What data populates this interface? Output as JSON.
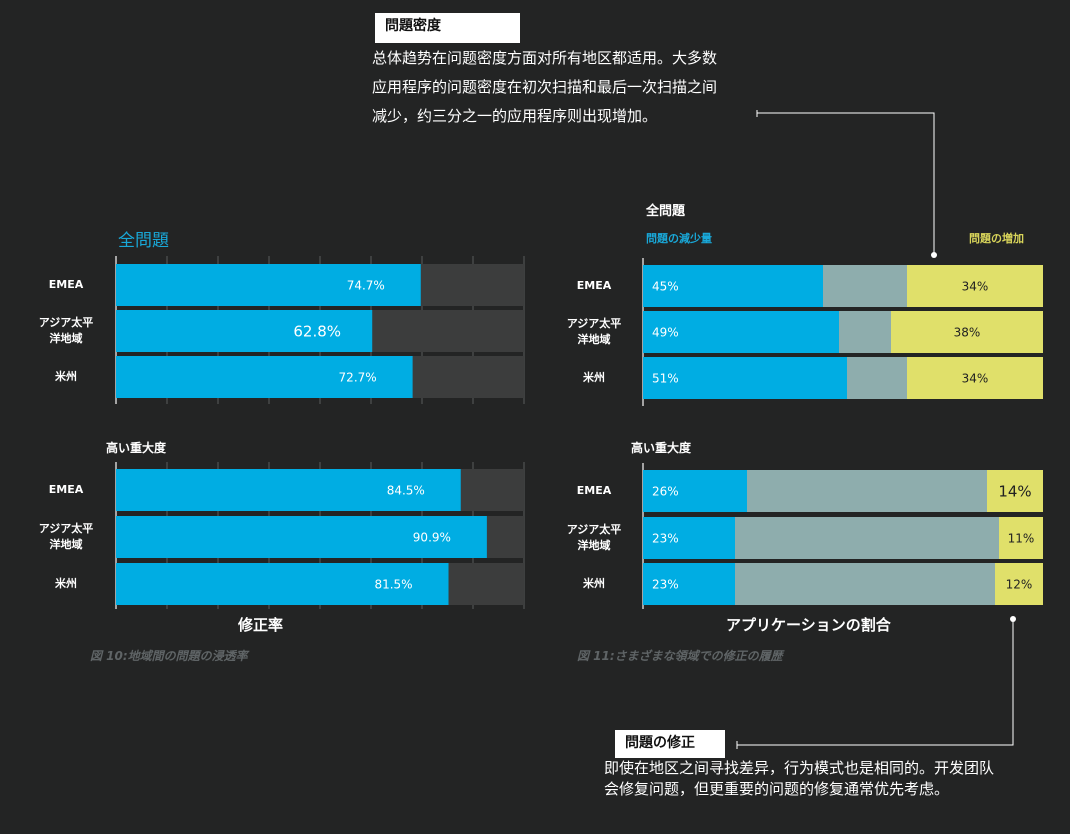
{
  "callout_top": {
    "tag": "問題密度",
    "body": "总体趋势在问题密度方面对所有地区都适用。大多数应用程序的问题密度在初次扫描和最后一次扫描之间减少，约三分之一的应用程序则出现增加。"
  },
  "callout_bottom": {
    "tag": "問題の修正",
    "body": "即使在地区之间寻找差异，行为模式也是相同的。开发团队会修复问题，但更重要的问题的修复通常优先考虑。"
  },
  "left": {
    "heading": "全問題",
    "subheading": "高い重大度",
    "axis_title": "修正率",
    "caption": "図 10:地域間の問題の浸透率"
  },
  "right": {
    "heading": "全問題",
    "legend_decrease": "問題の減少量",
    "legend_increase": "問題の増加",
    "subheading": "高い重大度",
    "axis_title": "アプリケーションの割合",
    "caption": "図 11:さまざまな領域での修正の履歴"
  },
  "colors": {
    "background": "#232424",
    "blue": "#00ade3",
    "gray_track": "#3c3d3d",
    "teal_gray": "#8eadad",
    "yellow": "#e0e06a",
    "white": "#ffffff"
  },
  "chart_data": [
    {
      "type": "bar",
      "orientation": "horizontal",
      "title": "全問題",
      "categories": [
        "EMEA",
        "アジア太平洋地域",
        "米州"
      ],
      "values": [
        74.7,
        62.8,
        72.7
      ],
      "labels": [
        "74.7%",
        "62.8%",
        "72.7%"
      ],
      "xlim": [
        0,
        100
      ]
    },
    {
      "type": "bar",
      "orientation": "horizontal",
      "title": "高い重大度",
      "categories": [
        "EMEA",
        "アジア太平洋地域",
        "米州"
      ],
      "values": [
        84.5,
        90.9,
        81.5
      ],
      "labels": [
        "84.5%",
        "90.9%",
        "81.5%"
      ],
      "xlim": [
        0,
        100
      ]
    },
    {
      "type": "bar",
      "orientation": "horizontal",
      "stacked": true,
      "title": "全問題",
      "categories": [
        "EMEA",
        "アジア太平洋地域",
        "米州"
      ],
      "series": [
        {
          "name": "問題の減少量",
          "values": [
            45,
            49,
            51
          ],
          "labels": [
            "45%",
            "49%",
            "51%"
          ]
        },
        {
          "values": [
            21,
            13,
            15
          ],
          "labels": [
            "",
            "",
            ""
          ]
        },
        {
          "name": "問題の増加",
          "values": [
            34,
            38,
            34
          ],
          "labels": [
            "34%",
            "38%",
            "34%"
          ]
        }
      ],
      "xlim": [
        0,
        100
      ]
    },
    {
      "type": "bar",
      "orientation": "horizontal",
      "stacked": true,
      "title": "高い重大度",
      "categories": [
        "EMEA",
        "アジア太平洋地域",
        "米州"
      ],
      "series": [
        {
          "values": [
            26,
            23,
            23
          ],
          "labels": [
            "26%",
            "23%",
            "23%"
          ]
        },
        {
          "values": [
            60,
            66,
            65
          ],
          "labels": [
            "",
            "",
            ""
          ]
        },
        {
          "values": [
            14,
            11,
            12
          ],
          "labels": [
            "14%",
            "11%",
            "12%"
          ]
        }
      ],
      "xlim": [
        0,
        100
      ]
    }
  ]
}
